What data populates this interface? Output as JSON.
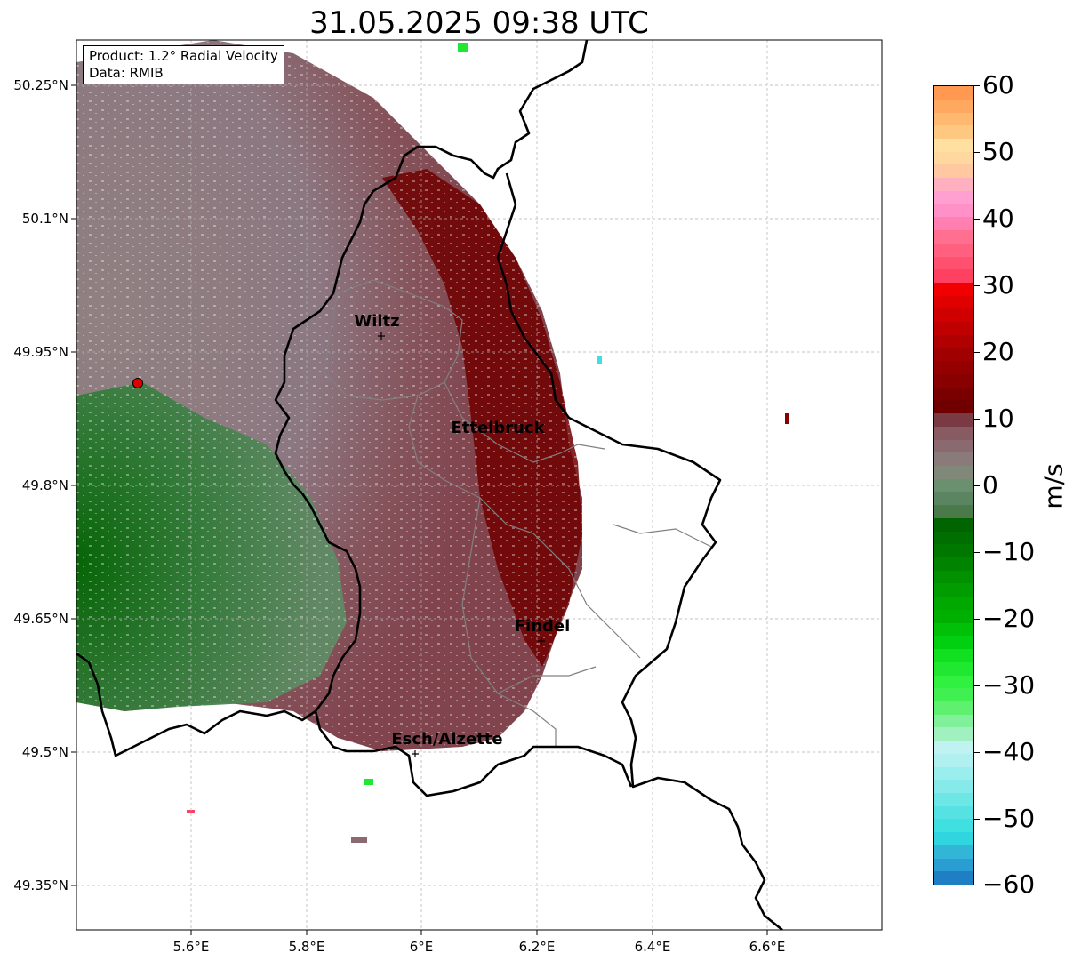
{
  "title": "31.05.2025 09:38 UTC",
  "info": {
    "product": "Product: 1.2° Radial Velocity",
    "data": "Data: RMIB"
  },
  "axes": {
    "lat_ticks": [
      "50.25°N",
      "50.1°N",
      "49.95°N",
      "49.8°N",
      "49.65°N",
      "49.5°N",
      "49.35°N"
    ],
    "lon_ticks": [
      "5.6°E",
      "5.8°E",
      "6°E",
      "6.2°E",
      "6.4°E",
      "6.6°E"
    ],
    "lat_values": [
      50.25,
      50.1,
      49.95,
      49.8,
      49.65,
      49.5,
      49.35
    ],
    "lon_values": [
      5.6,
      5.8,
      6.0,
      6.2,
      6.4,
      6.6
    ],
    "grid": true
  },
  "cities": [
    {
      "name": "Wiltz",
      "lon": 5.93,
      "lat": 49.966
    },
    {
      "name": "Ettelbruck",
      "lon": 6.1,
      "lat": 49.85
    },
    {
      "name": "Findel",
      "lon": 6.21,
      "lat": 49.627
    },
    {
      "name": "Esch/Alzette",
      "lon": 5.99,
      "lat": 49.497
    }
  ],
  "radar_site": {
    "lon": 5.505,
    "lat": 49.914
  },
  "colorbar": {
    "label": "m/s",
    "min": -60,
    "max": 60,
    "ticks": [
      "60",
      "50",
      "40",
      "30",
      "20",
      "10",
      "0",
      "−10",
      "−20",
      "−30",
      "−40",
      "−50",
      "−60"
    ],
    "colors": [
      "#1f7fc4",
      "#2a9ed2",
      "#33b5d8",
      "#2fd6e0",
      "#3ee0e0",
      "#56e2e2",
      "#6de6e6",
      "#86eaea",
      "#9aeeee",
      "#b0f0f0",
      "#bff2f0",
      "#a0f0c0",
      "#80f09a",
      "#60f070",
      "#40f050",
      "#30f040",
      "#20e830",
      "#10e020",
      "#00d010",
      "#00c008",
      "#00b000",
      "#00a800",
      "#009c00",
      "#009000",
      "#008400",
      "#007800",
      "#006e00",
      "#006400",
      "#4a7a4a",
      "#5a8560",
      "#6a9070",
      "#80887a",
      "#8a7a7a",
      "#8a6a70",
      "#885a62",
      "#7a3a44",
      "#700000",
      "#7a0000",
      "#880000",
      "#940000",
      "#a00000",
      "#b00000",
      "#c00000",
      "#d00000",
      "#e00000",
      "#f00000",
      "#ff4060",
      "#ff5070",
      "#ff6080",
      "#ff7090",
      "#ff80b0",
      "#ff90c8",
      "#ffa0d0",
      "#ffb0c0",
      "#ffc8a0",
      "#ffd8a0",
      "#ffe0a0",
      "#ffc880",
      "#ffb870",
      "#ffa860",
      "#ff9850"
    ]
  }
}
